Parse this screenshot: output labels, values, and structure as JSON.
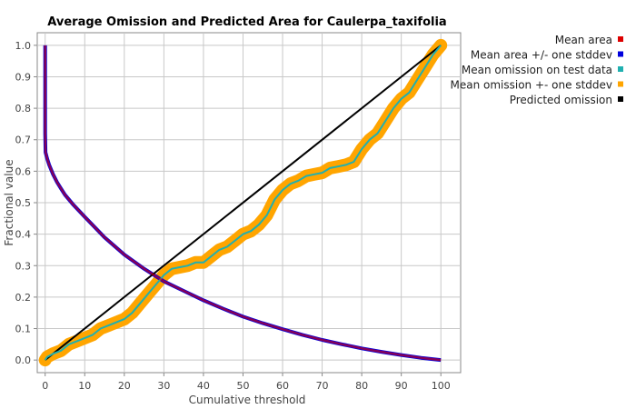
{
  "chart_data": {
    "type": "line",
    "title": "Average Omission and Predicted Area for Caulerpa_taxifolia",
    "xlabel": "Cumulative threshold",
    "ylabel": "Fractional value",
    "xlim": [
      -2,
      105
    ],
    "ylim": [
      -0.04,
      1.04
    ],
    "xticks": [
      0,
      10,
      20,
      30,
      40,
      50,
      60,
      70,
      80,
      90,
      100
    ],
    "yticks": [
      0.0,
      0.1,
      0.2,
      0.3,
      0.4,
      0.5,
      0.6,
      0.7,
      0.8,
      0.9,
      1.0
    ],
    "xtick_labels": [
      "0",
      "10",
      "20",
      "30",
      "40",
      "50",
      "60",
      "70",
      "80",
      "90",
      "100"
    ],
    "ytick_labels": [
      "0.0",
      "0.1",
      "0.2",
      "0.3",
      "0.4",
      "0.5",
      "0.6",
      "0.7",
      "0.8",
      "0.9",
      "1.0"
    ],
    "grid": true,
    "legend_position": "right",
    "series": [
      {
        "name": "Mean area",
        "color": "#dd0000",
        "x": [
          0,
          0,
          0.1,
          0.5,
          1,
          2,
          3,
          4,
          5,
          7,
          10,
          15,
          20,
          25,
          30,
          35,
          40,
          45,
          50,
          55,
          60,
          65,
          70,
          75,
          80,
          85,
          90,
          95,
          100
        ],
        "y": [
          1.0,
          0.72,
          0.66,
          0.64,
          0.62,
          0.59,
          0.565,
          0.545,
          0.525,
          0.495,
          0.455,
          0.39,
          0.335,
          0.29,
          0.25,
          0.22,
          0.19,
          0.163,
          0.138,
          0.117,
          0.098,
          0.08,
          0.064,
          0.05,
          0.037,
          0.026,
          0.016,
          0.007,
          0.0
        ]
      },
      {
        "name": "Mean area +/- one stddev",
        "color": "#0000dd",
        "x": [
          0,
          0,
          0.1,
          0.5,
          1,
          2,
          3,
          4,
          5,
          7,
          10,
          15,
          20,
          25,
          30,
          35,
          40,
          45,
          50,
          55,
          60,
          65,
          70,
          75,
          80,
          85,
          90,
          95,
          100
        ],
        "y": [
          1.0,
          0.72,
          0.66,
          0.64,
          0.62,
          0.59,
          0.565,
          0.545,
          0.525,
          0.495,
          0.455,
          0.39,
          0.335,
          0.29,
          0.25,
          0.22,
          0.19,
          0.163,
          0.138,
          0.117,
          0.098,
          0.08,
          0.064,
          0.05,
          0.037,
          0.026,
          0.016,
          0.007,
          0.0
        ]
      },
      {
        "name": "Mean omission on test data",
        "color": "#20b0b0",
        "x": [
          0,
          0.5,
          2,
          4,
          6,
          8,
          10,
          12,
          14,
          16,
          18,
          20,
          22,
          24,
          26,
          28,
          30,
          32,
          34,
          36,
          38,
          40,
          42,
          44,
          46,
          48,
          50,
          52,
          54,
          56,
          58,
          60,
          62,
          64,
          66,
          68,
          70,
          72,
          74,
          76,
          78,
          80,
          82,
          84,
          86,
          88,
          90,
          92,
          94,
          96,
          98,
          100
        ],
        "y": [
          0.0,
          0.01,
          0.02,
          0.03,
          0.05,
          0.06,
          0.07,
          0.08,
          0.1,
          0.11,
          0.12,
          0.13,
          0.15,
          0.18,
          0.21,
          0.24,
          0.27,
          0.29,
          0.295,
          0.3,
          0.31,
          0.31,
          0.33,
          0.35,
          0.36,
          0.38,
          0.4,
          0.41,
          0.43,
          0.46,
          0.51,
          0.54,
          0.56,
          0.57,
          0.585,
          0.59,
          0.595,
          0.61,
          0.615,
          0.62,
          0.63,
          0.67,
          0.7,
          0.72,
          0.76,
          0.8,
          0.83,
          0.85,
          0.89,
          0.93,
          0.97,
          1.0
        ]
      },
      {
        "name": "Mean omission +- one stddev",
        "color": "#ffa500",
        "x": [
          0,
          0.5,
          2,
          4,
          6,
          8,
          10,
          12,
          14,
          16,
          18,
          20,
          22,
          24,
          26,
          28,
          30,
          32,
          34,
          36,
          38,
          40,
          42,
          44,
          46,
          48,
          50,
          52,
          54,
          56,
          58,
          60,
          62,
          64,
          66,
          68,
          70,
          72,
          74,
          76,
          78,
          80,
          82,
          84,
          86,
          88,
          90,
          92,
          94,
          96,
          98,
          100
        ],
        "y": [
          0.0,
          0.01,
          0.02,
          0.03,
          0.05,
          0.06,
          0.07,
          0.08,
          0.1,
          0.11,
          0.12,
          0.13,
          0.15,
          0.18,
          0.21,
          0.24,
          0.27,
          0.29,
          0.295,
          0.3,
          0.31,
          0.31,
          0.33,
          0.35,
          0.36,
          0.38,
          0.4,
          0.41,
          0.43,
          0.46,
          0.51,
          0.54,
          0.56,
          0.57,
          0.585,
          0.59,
          0.595,
          0.61,
          0.615,
          0.62,
          0.63,
          0.67,
          0.7,
          0.72,
          0.76,
          0.8,
          0.83,
          0.85,
          0.89,
          0.93,
          0.97,
          1.0
        ]
      },
      {
        "name": "Predicted omission",
        "color": "#000000",
        "x": [
          0,
          100
        ],
        "y": [
          0,
          1
        ]
      }
    ]
  }
}
